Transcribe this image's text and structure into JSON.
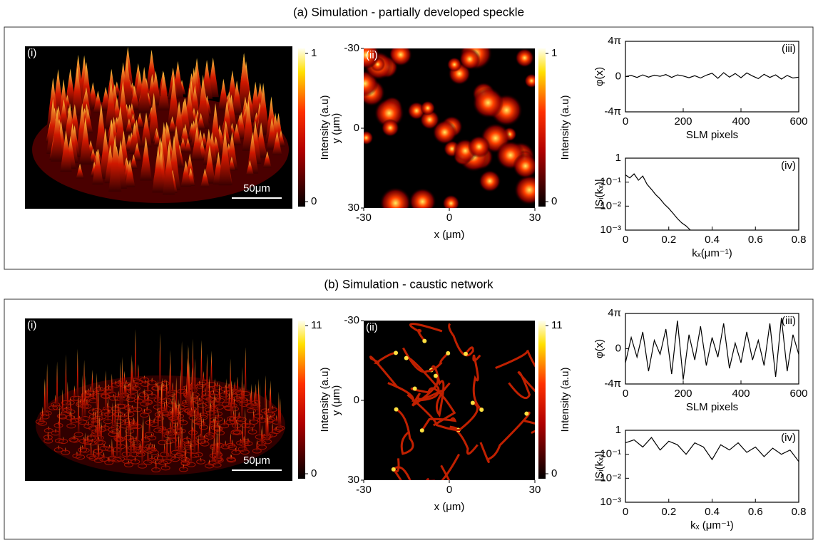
{
  "sections": [
    {
      "title": "(a) Simulation - partially developed speckle",
      "surface": {
        "label": "(i)",
        "scalebar": "50μm",
        "colorbar": {
          "label": "Intensity (a.u)",
          "ticks": [
            0,
            1
          ]
        }
      },
      "map": {
        "label": "(ii)",
        "xlabel": "x (μm)",
        "ylabel": "y (μm)",
        "xlim": [
          -30,
          30
        ],
        "ylim": [
          30,
          -30
        ],
        "xticks": [
          -30,
          0,
          30
        ],
        "yticks": [
          -30,
          0,
          30
        ],
        "colorbar": {
          "label": "Intensity (a.u)",
          "ticks": [
            0,
            1
          ]
        }
      },
      "phase": {
        "type": "line",
        "label": "(iii)",
        "xlabel": "SLM pixels",
        "ylabel": "φ(x)",
        "color": "#000000",
        "x": [
          0,
          20,
          40,
          60,
          80,
          100,
          120,
          140,
          160,
          180,
          200,
          220,
          240,
          260,
          280,
          300,
          320,
          340,
          360,
          380,
          400,
          420,
          440,
          460,
          480,
          500,
          520,
          540,
          560,
          580,
          600
        ],
        "values": [
          0,
          0.4,
          -0.3,
          0.6,
          -0.2,
          0.5,
          0.1,
          0.7,
          -0.3,
          0.6,
          0.2,
          -0.4,
          0.3,
          -0.5,
          0.5,
          1.2,
          -0.6,
          1.4,
          -0.2,
          1.1,
          -0.4,
          1.3,
          0.2,
          -0.7,
          0.8,
          -0.3,
          0.6,
          -0.9,
          0.4,
          -0.5,
          -0.2
        ],
        "xlim": [
          0,
          600
        ],
        "ylim": [
          -12.566,
          12.566
        ],
        "xticks": [
          0,
          200,
          400,
          600
        ],
        "yticks": [
          {
            "value": 12.566,
            "label": "4π"
          },
          0,
          {
            "value": -12.566,
            "label": "-4π"
          }
        ]
      },
      "spectrum": {
        "type": "line",
        "label": "(iv)",
        "xlabel": "kₓ(μm⁻¹)",
        "ylabel": "|Sᵢ(kₓ)|",
        "color": "#000000",
        "log_y": true,
        "x": [
          0,
          0.02,
          0.04,
          0.06,
          0.08,
          0.1,
          0.12,
          0.14,
          0.16,
          0.18,
          0.2,
          0.22,
          0.24,
          0.26,
          0.28,
          0.3
        ],
        "values": [
          0.2,
          0.15,
          0.22,
          0.12,
          0.18,
          0.08,
          0.05,
          0.03,
          0.02,
          0.012,
          0.008,
          0.005,
          0.003,
          0.002,
          0.0015,
          0.001
        ],
        "xlim": [
          0,
          0.8
        ],
        "ylim": [
          0.001,
          1
        ],
        "xticks": [
          0,
          0.2,
          0.4,
          0.6,
          0.8
        ],
        "yticks": [
          1,
          {
            "value": 0.1,
            "label": "10⁻¹"
          },
          {
            "value": 0.01,
            "label": "10⁻²"
          },
          {
            "value": 0.001,
            "label": "10⁻³"
          }
        ]
      }
    },
    {
      "title": "(b) Simulation - caustic network",
      "surface": {
        "label": "(i)",
        "scalebar": "50μm",
        "colorbar": {
          "label": "Intensity (a.u)",
          "ticks": [
            0,
            11
          ]
        }
      },
      "map": {
        "label": "(ii)",
        "xlabel": "x (μm)",
        "ylabel": "y (μm)",
        "xlim": [
          -30,
          30
        ],
        "ylim": [
          30,
          -30
        ],
        "xticks": [
          -30,
          0,
          30
        ],
        "yticks": [
          -30,
          0,
          30
        ],
        "colorbar": {
          "label": "Intensity (a.u)",
          "ticks": [
            0,
            11
          ]
        }
      },
      "phase": {
        "type": "line",
        "label": "(iii)",
        "xlabel": "SLM pixels",
        "ylabel": "φ(x)",
        "color": "#000000",
        "x": [
          0,
          20,
          40,
          60,
          80,
          100,
          120,
          140,
          160,
          180,
          200,
          220,
          240,
          260,
          280,
          300,
          320,
          340,
          360,
          380,
          400,
          420,
          440,
          460,
          480,
          500,
          520,
          540,
          560,
          580,
          600
        ],
        "values": [
          -5,
          4,
          -3,
          6,
          -8,
          3,
          -2,
          7,
          -9,
          10,
          -11,
          5,
          -4,
          8,
          -6,
          4,
          -3,
          9,
          -7,
          2,
          -5,
          6,
          -4,
          3,
          -6,
          9,
          -10,
          11,
          -8,
          5,
          -2
        ],
        "xlim": [
          0,
          600
        ],
        "ylim": [
          -12.566,
          12.566
        ],
        "xticks": [
          0,
          200,
          400,
          600
        ],
        "yticks": [
          {
            "value": 12.566,
            "label": "4π"
          },
          0,
          {
            "value": -12.566,
            "label": "-4π"
          }
        ]
      },
      "spectrum": {
        "type": "line",
        "label": "(iv)",
        "xlabel": "kₓ (μm⁻¹)",
        "ylabel": "|Sᵢ(kₓ)|",
        "color": "#000000",
        "log_y": true,
        "x": [
          0,
          0.04,
          0.08,
          0.12,
          0.16,
          0.2,
          0.24,
          0.28,
          0.32,
          0.36,
          0.4,
          0.44,
          0.48,
          0.52,
          0.56,
          0.6,
          0.64,
          0.68,
          0.72,
          0.76,
          0.8
        ],
        "values": [
          0.3,
          0.4,
          0.2,
          0.5,
          0.15,
          0.35,
          0.25,
          0.1,
          0.3,
          0.2,
          0.06,
          0.25,
          0.15,
          0.3,
          0.12,
          0.2,
          0.08,
          0.18,
          0.1,
          0.15,
          0.05
        ],
        "xlim": [
          0,
          0.8
        ],
        "ylim": [
          0.001,
          1
        ],
        "xticks": [
          0,
          0.2,
          0.4,
          0.6,
          0.8
        ],
        "yticks": [
          1,
          {
            "value": 0.1,
            "label": "10⁻¹"
          },
          {
            "value": 0.01,
            "label": "10⁻²"
          },
          {
            "value": 0.001,
            "label": "10⁻³"
          }
        ]
      }
    }
  ]
}
